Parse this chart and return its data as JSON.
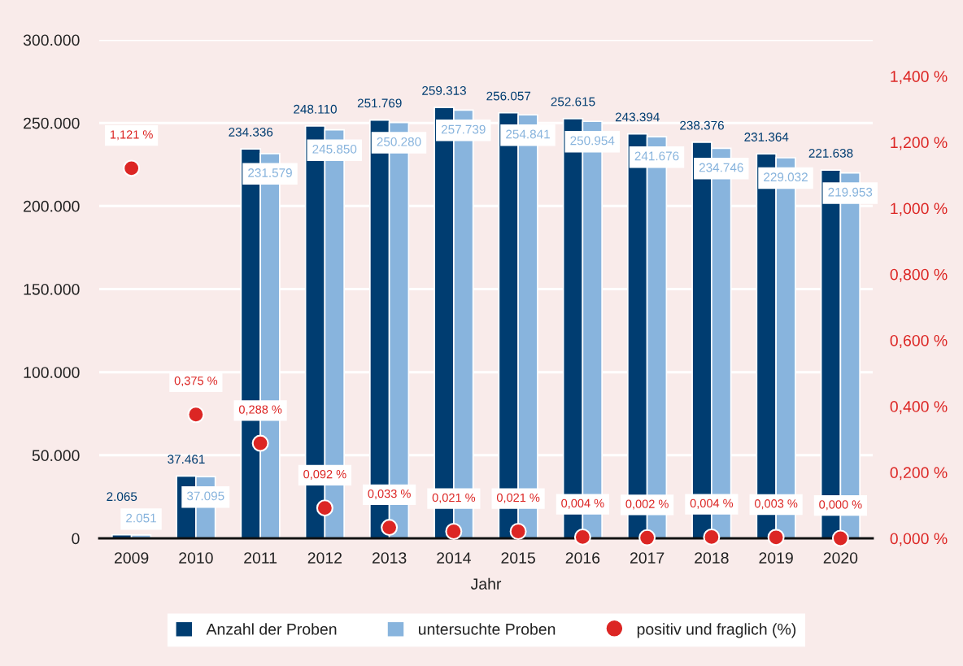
{
  "chart_data": {
    "type": "bar",
    "categories": [
      "2009",
      "2010",
      "2011",
      "2012",
      "2013",
      "2014",
      "2015",
      "2016",
      "2017",
      "2018",
      "2019",
      "2020"
    ],
    "xlabel": "Jahr",
    "series": [
      {
        "name": "Anzahl der Proben",
        "color": "#003d71",
        "values": [
          2065,
          37461,
          234336,
          248110,
          251769,
          259313,
          256057,
          252615,
          243394,
          238376,
          231364,
          221638
        ],
        "value_labels": [
          "2.065",
          "37.461",
          "234.336",
          "248.110",
          "251.769",
          "259.313",
          "256.057",
          "252.615",
          "243.394",
          "238.376",
          "231.364",
          "221.638"
        ]
      },
      {
        "name": "untersuchte Proben",
        "color": "#88b4dd",
        "values": [
          2051,
          37095,
          231579,
          245850,
          250280,
          257739,
          254841,
          250954,
          241676,
          234746,
          229032,
          219953
        ],
        "value_labels": [
          "2.051",
          "37.095",
          "231.579",
          "245.850",
          "250.280",
          "257.739",
          "254.841",
          "250.954",
          "241.676",
          "234.746",
          "229.032",
          "219.953"
        ]
      },
      {
        "name": "positiv und fraglich (%)",
        "type": "scatter",
        "axis": "y2",
        "color": "#dc2624",
        "values": [
          1.121,
          0.375,
          0.288,
          0.092,
          0.033,
          0.021,
          0.021,
          0.004,
          0.002,
          0.004,
          0.003,
          0.0
        ],
        "value_labels": [
          "1,121 %",
          "0,375 %",
          "0,288 %",
          "0,092 %",
          "0,033 %",
          "0,021 %",
          "0,021 %",
          "0,004 %",
          "0,002 %",
          "0,004 %",
          "0,003 %",
          "0,000 %"
        ]
      }
    ],
    "ylim": [
      0,
      300000
    ],
    "yticks": [
      0,
      {
        "value": 50000,
        "label": "50.000"
      },
      {
        "value": 100000,
        "label": "100.000"
      },
      {
        "value": 150000,
        "label": "150.000"
      },
      {
        "value": 200000,
        "label": "200.000"
      },
      {
        "value": 250000,
        "label": "250.000"
      },
      {
        "value": 300000,
        "label": "300.000"
      }
    ],
    "y2lim": [
      0,
      1.51
    ],
    "y2ticks": [
      {
        "value": 0,
        "label": "0,000 %"
      },
      {
        "value": 0.2,
        "label": "0,200 %"
      },
      {
        "value": 0.4,
        "label": "0,400 %"
      },
      {
        "value": 0.6,
        "label": "0,600 %"
      },
      {
        "value": 0.8,
        "label": "0,800 %"
      },
      {
        "value": 1.0,
        "label": "1,000 %"
      },
      {
        "value": 1.2,
        "label": "1,200 %"
      },
      {
        "value": 1.4,
        "label": "1,400 %"
      }
    ],
    "grid": "y",
    "legend": "bottom",
    "marker": "circle"
  }
}
